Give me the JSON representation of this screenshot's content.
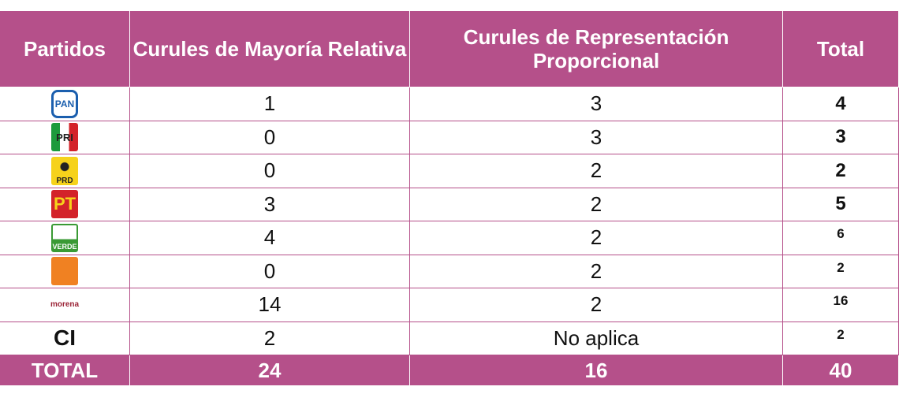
{
  "table": {
    "header": [
      "Partidos",
      "Curules de Mayoría Relativa",
      "Curules de Representación Proporcional",
      "Total"
    ],
    "rows": [
      {
        "party": "PAN",
        "cells": [
          1,
          3,
          4
        ]
      },
      {
        "party": "PRI",
        "cells": [
          0,
          3,
          3
        ]
      },
      {
        "party": "PRD",
        "cells": [
          0,
          2,
          2
        ]
      },
      {
        "party": "PT",
        "cells": [
          3,
          2,
          5
        ]
      },
      {
        "party": "VERDE",
        "cells": [
          4,
          2,
          6
        ]
      },
      {
        "cells": [
          0,
          2,
          2
        ]
      },
      {
        "party": "morena",
        "cells": [
          14,
          2,
          16
        ]
      },
      {
        "party": "CI",
        "cells": [
          2,
          "No aplica",
          2
        ]
      }
    ],
    "footer": [
      "TOTAL",
      24,
      16,
      40
    ]
  }
}
